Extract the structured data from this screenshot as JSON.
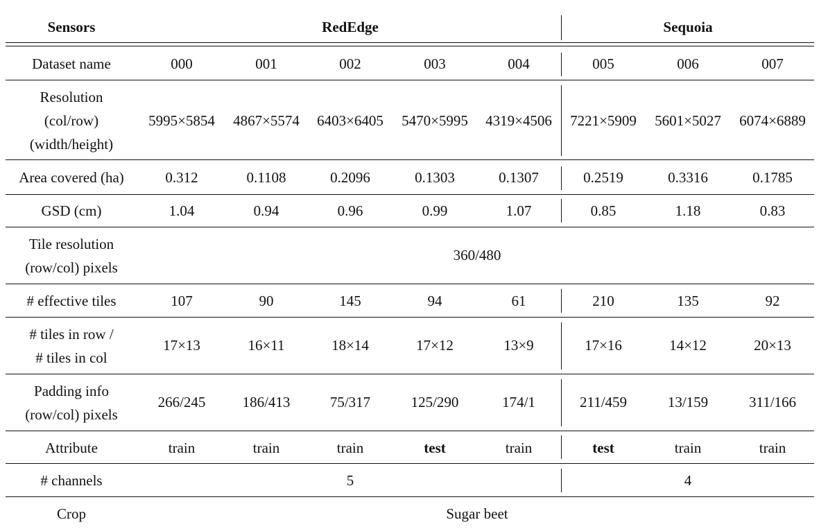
{
  "header": {
    "sensors_label": "Sensors",
    "rededge_label": "RedEdge",
    "sequoia_label": "Sequoia"
  },
  "rows": {
    "dataset": {
      "label": "Dataset name",
      "values": [
        "000",
        "001",
        "002",
        "003",
        "004",
        "005",
        "006",
        "007"
      ]
    },
    "resolution": {
      "label_lines": [
        "Resolution",
        "(col/row)",
        "(width/height)"
      ],
      "values": [
        "5995×5854",
        "4867×5574",
        "6403×6405",
        "5470×5995",
        "4319×4506",
        "7221×5909",
        "5601×5027",
        "6074×6889"
      ]
    },
    "area": {
      "label": "Area covered (ha)",
      "values": [
        "0.312",
        "0.1108",
        "0.2096",
        "0.1303",
        "0.1307",
        "0.2519",
        "0.3316",
        "0.1785"
      ]
    },
    "gsd": {
      "label": "GSD (cm)",
      "values": [
        "1.04",
        "0.94",
        "0.96",
        "0.99",
        "1.07",
        "0.85",
        "1.18",
        "0.83"
      ]
    },
    "tile_res": {
      "label_lines": [
        "Tile resolution",
        "(row/col) pixels"
      ],
      "value": "360/480"
    },
    "eff_tiles": {
      "label": "# effective tiles",
      "values": [
        "107",
        "90",
        "145",
        "94",
        "61",
        "210",
        "135",
        "92"
      ]
    },
    "tiles_rc": {
      "label_lines": [
        "# tiles in row /",
        "# tiles in col"
      ],
      "values": [
        "17×13",
        "16×11",
        "18×14",
        "17×12",
        "13×9",
        "17×16",
        "14×12",
        "20×13"
      ]
    },
    "padding": {
      "label_lines": [
        "Padding info",
        "(row/col) pixels"
      ],
      "values": [
        "266/245",
        "186/413",
        "75/317",
        "125/290",
        "174/1",
        "211/459",
        "13/159",
        "311/166"
      ]
    },
    "attribute": {
      "label": "Attribute",
      "values": [
        "train",
        "train",
        "train",
        "test",
        "train",
        "test",
        "train",
        "train"
      ]
    },
    "channels": {
      "label": "# channels",
      "rededge": "5",
      "sequoia": "4"
    },
    "crop": {
      "label": "Crop",
      "value": "Sugar beet"
    }
  }
}
